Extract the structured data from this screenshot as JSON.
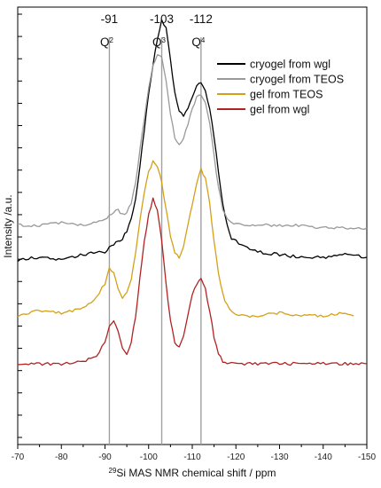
{
  "chart_data": {
    "type": "line",
    "title": "",
    "xlabel": "Si MAS NMR chemical shift / ppm",
    "xlabel_superscript": "29",
    "ylabel": "Intensity /a.u.",
    "xlim": [
      -70,
      -150
    ],
    "x_ticks": [
      "-70",
      "-80",
      "-90",
      "-100",
      "-110",
      "-120",
      "-130",
      "-140",
      "-150"
    ],
    "y_tick_labels_shown": false,
    "legend_position": "top-right",
    "reference_lines": [
      {
        "x": -91,
        "value_label": "-91",
        "q_base": "Q",
        "q_sup": "2"
      },
      {
        "x": -103,
        "value_label": "-103",
        "q_base": "Q",
        "q_sup": "3"
      },
      {
        "x": -112,
        "value_label": "-112",
        "q_base": "Q",
        "q_sup": "4"
      }
    ],
    "series": [
      {
        "name": "cryogel from wgl",
        "color": "#000000",
        "x": [
          -70,
          -75,
          -80,
          -85,
          -88,
          -90,
          -91,
          -92,
          -93,
          -94,
          -95,
          -96,
          -97,
          -98,
          -99,
          -100,
          -101,
          -102,
          -103,
          -104,
          -105,
          -106,
          -107,
          -108,
          -109,
          -110,
          -111,
          -112,
          -113,
          -114,
          -115,
          -116,
          -117,
          -118,
          -119,
          -120,
          -122,
          -125,
          -130,
          -135,
          -140,
          -145,
          -150
        ],
        "y": [
          0.09,
          0.1,
          0.09,
          0.11,
          0.12,
          0.12,
          0.14,
          0.15,
          0.16,
          0.17,
          0.2,
          0.24,
          0.32,
          0.44,
          0.58,
          0.72,
          0.82,
          0.92,
          0.99,
          0.96,
          0.84,
          0.72,
          0.65,
          0.63,
          0.66,
          0.7,
          0.74,
          0.76,
          0.73,
          0.66,
          0.55,
          0.42,
          0.3,
          0.22,
          0.17,
          0.16,
          0.14,
          0.12,
          0.11,
          0.1,
          0.1,
          0.11,
          0.1
        ]
      },
      {
        "name": "cryogel from TEOS",
        "color": "#999999",
        "x": [
          -70,
          -75,
          -80,
          -85,
          -88,
          -90,
          -91,
          -92,
          -93,
          -94,
          -95,
          -96,
          -97,
          -98,
          -99,
          -100,
          -101,
          -102,
          -103,
          -104,
          -105,
          -106,
          -107,
          -108,
          -109,
          -110,
          -111,
          -112,
          -113,
          -114,
          -115,
          -116,
          -117,
          -118,
          -119,
          -120,
          -122,
          -125,
          -130,
          -135,
          -140,
          -145,
          -150
        ],
        "y": [
          0.22,
          0.22,
          0.23,
          0.22,
          0.23,
          0.24,
          0.26,
          0.27,
          0.28,
          0.26,
          0.27,
          0.3,
          0.38,
          0.5,
          0.62,
          0.74,
          0.82,
          0.86,
          0.85,
          0.76,
          0.64,
          0.55,
          0.52,
          0.55,
          0.6,
          0.66,
          0.7,
          0.71,
          0.68,
          0.6,
          0.48,
          0.36,
          0.28,
          0.24,
          0.23,
          0.23,
          0.22,
          0.22,
          0.22,
          0.22,
          0.21,
          0.21,
          0.21
        ]
      }
    ],
    "series_lower": [
      {
        "name": "gel from TEOS",
        "color": "#d4a017",
        "x": [
          -70,
          -75,
          -80,
          -85,
          -88,
          -90,
          -91,
          -92,
          -93,
          -94,
          -95,
          -96,
          -97,
          -98,
          -99,
          -100,
          -101,
          -102,
          -103,
          -104,
          -105,
          -106,
          -107,
          -108,
          -109,
          -110,
          -111,
          -112,
          -113,
          -114,
          -115,
          -116,
          -117,
          -118,
          -119,
          -120,
          -122,
          -125,
          -130,
          -135,
          -140,
          -145,
          -147
        ],
        "y": [
          0.48,
          0.5,
          0.49,
          0.51,
          0.55,
          0.6,
          0.66,
          0.64,
          0.58,
          0.55,
          0.57,
          0.62,
          0.72,
          0.84,
          0.94,
          1.02,
          1.06,
          1.04,
          0.98,
          0.88,
          0.78,
          0.72,
          0.7,
          0.74,
          0.82,
          0.9,
          0.98,
          1.03,
          1.0,
          0.9,
          0.76,
          0.64,
          0.56,
          0.52,
          0.5,
          0.49,
          0.48,
          0.48,
          0.49,
          0.48,
          0.48,
          0.49,
          0.48
        ]
      },
      {
        "name": "gel from wgl",
        "color": "#b22222",
        "x": [
          -70,
          -75,
          -80,
          -85,
          -88,
          -90,
          -91,
          -92,
          -93,
          -94,
          -95,
          -96,
          -97,
          -98,
          -99,
          -100,
          -101,
          -102,
          -103,
          -104,
          -105,
          -106,
          -107,
          -108,
          -109,
          -110,
          -111,
          -112,
          -113,
          -114,
          -115,
          -116,
          -117,
          -118,
          -119,
          -120,
          -122,
          -125,
          -130,
          -135,
          -140,
          -145,
          -150
        ],
        "y": [
          0.3,
          0.3,
          0.3,
          0.31,
          0.33,
          0.38,
          0.44,
          0.46,
          0.42,
          0.36,
          0.34,
          0.38,
          0.48,
          0.62,
          0.76,
          0.86,
          0.92,
          0.88,
          0.76,
          0.6,
          0.46,
          0.38,
          0.36,
          0.4,
          0.48,
          0.56,
          0.6,
          0.62,
          0.58,
          0.5,
          0.4,
          0.34,
          0.31,
          0.3,
          0.3,
          0.3,
          0.3,
          0.3,
          0.3,
          0.3,
          0.3,
          0.3,
          0.3
        ]
      }
    ]
  }
}
